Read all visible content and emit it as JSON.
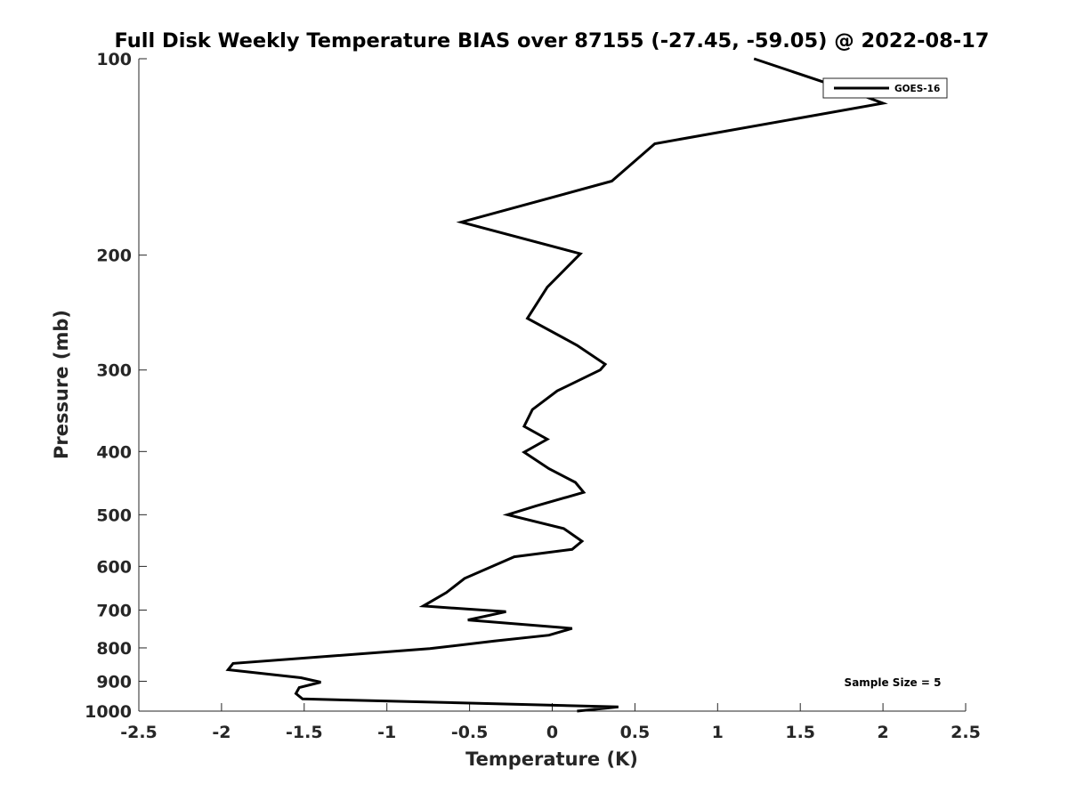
{
  "chart_data": {
    "type": "line",
    "title": "Full Disk Weekly Temperature BIAS over 87155 (-27.45, -59.05) @ 2022-08-17",
    "xlabel": "Temperature (K)",
    "ylabel": "Pressure (mb)",
    "xlim": [
      -2.5,
      2.5
    ],
    "ylim": [
      100,
      1000
    ],
    "y_scale": "log",
    "y_reversed": true,
    "x_ticks": [
      -2.5,
      -2,
      -1.5,
      -1,
      -0.5,
      0,
      0.5,
      1,
      1.5,
      2,
      2.5
    ],
    "x_tick_labels": [
      "-2.5",
      "-2",
      "-1.5",
      "-1",
      "-0.5",
      "0",
      "0.5",
      "1",
      "1.5",
      "2",
      "2.5"
    ],
    "y_ticks": [
      100,
      200,
      300,
      400,
      500,
      600,
      700,
      800,
      900,
      1000
    ],
    "y_tick_labels": [
      "100",
      "200",
      "300",
      "400",
      "500",
      "600",
      "700",
      "800",
      "900",
      "1000"
    ],
    "grid": false,
    "legend": {
      "position": "top-right",
      "entries": [
        "GOES-16"
      ]
    },
    "annotation": "Sample Size = 5",
    "series": [
      {
        "name": "GOES-16",
        "color": "#000000",
        "points": [
          {
            "x": 1.22,
            "y": 100
          },
          {
            "x": 1.8,
            "y": 112
          },
          {
            "x": 2.0,
            "y": 117
          },
          {
            "x": 0.62,
            "y": 135
          },
          {
            "x": 0.36,
            "y": 154
          },
          {
            "x": -0.55,
            "y": 178
          },
          {
            "x": 0.17,
            "y": 199
          },
          {
            "x": -0.03,
            "y": 224
          },
          {
            "x": -0.15,
            "y": 250
          },
          {
            "x": 0.15,
            "y": 275
          },
          {
            "x": 0.32,
            "y": 294
          },
          {
            "x": 0.29,
            "y": 300
          },
          {
            "x": 0.03,
            "y": 323
          },
          {
            "x": -0.12,
            "y": 345
          },
          {
            "x": -0.17,
            "y": 366
          },
          {
            "x": -0.03,
            "y": 383
          },
          {
            "x": -0.17,
            "y": 401
          },
          {
            "x": -0.02,
            "y": 425
          },
          {
            "x": 0.14,
            "y": 446
          },
          {
            "x": 0.19,
            "y": 462
          },
          {
            "x": -0.1,
            "y": 485
          },
          {
            "x": -0.27,
            "y": 500
          },
          {
            "x": 0.07,
            "y": 525
          },
          {
            "x": 0.18,
            "y": 549
          },
          {
            "x": 0.12,
            "y": 565
          },
          {
            "x": -0.23,
            "y": 580
          },
          {
            "x": -0.53,
            "y": 626
          },
          {
            "x": -0.64,
            "y": 658
          },
          {
            "x": -0.78,
            "y": 690
          },
          {
            "x": -0.28,
            "y": 704
          },
          {
            "x": -0.51,
            "y": 725
          },
          {
            "x": 0.12,
            "y": 747
          },
          {
            "x": -0.02,
            "y": 765
          },
          {
            "x": -0.35,
            "y": 781
          },
          {
            "x": -0.74,
            "y": 802
          },
          {
            "x": -1.93,
            "y": 845
          },
          {
            "x": -1.96,
            "y": 864
          },
          {
            "x": -1.52,
            "y": 889
          },
          {
            "x": -1.4,
            "y": 903
          },
          {
            "x": -1.53,
            "y": 920
          },
          {
            "x": -1.55,
            "y": 940
          },
          {
            "x": -1.51,
            "y": 958
          },
          {
            "x": 0.4,
            "y": 985
          },
          {
            "x": 0.15,
            "y": 1000
          }
        ]
      }
    ]
  }
}
